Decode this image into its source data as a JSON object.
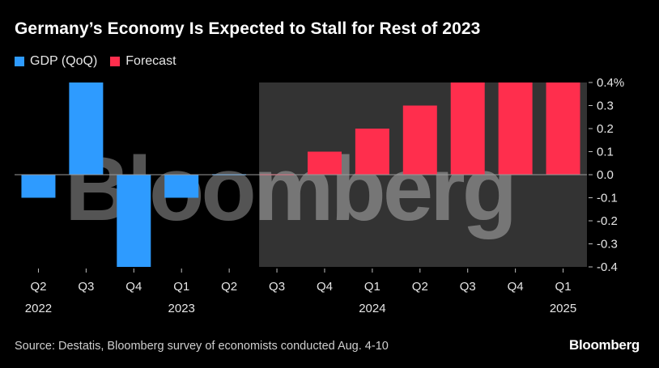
{
  "title": "Germany’s Economy Is Expected to Stall for Rest of 2023",
  "legend": [
    {
      "label": "GDP (QoQ)",
      "color": "#2e9bff"
    },
    {
      "label": "Forecast",
      "color": "#ff2e4d"
    }
  ],
  "source": "Source: Destatis, Bloomberg survey of economists conducted Aug. 4-10",
  "brand": "Bloomberg",
  "watermark": "Bloomberg",
  "chart_data": {
    "type": "bar",
    "categories": [
      "Q2 2022",
      "Q3 2022",
      "Q4 2022",
      "Q1 2023",
      "Q2 2023",
      "Q3 2023",
      "Q4 2023",
      "Q1 2024",
      "Q2 2024",
      "Q3 2024",
      "Q4 2024",
      "Q1 2025"
    ],
    "quarter_labels": [
      "Q2",
      "Q3",
      "Q4",
      "Q1",
      "Q2",
      "Q3",
      "Q4",
      "Q1",
      "Q2",
      "Q3",
      "Q4",
      "Q1"
    ],
    "year_labels": [
      "2022",
      "",
      "",
      "2023",
      "",
      "",
      "",
      "2024",
      "",
      "",
      "",
      "2025"
    ],
    "series": [
      {
        "name": "GDP (QoQ)",
        "color": "#2e9bff",
        "values": [
          -0.1,
          0.4,
          -0.4,
          -0.1,
          0.0,
          null,
          null,
          null,
          null,
          null,
          null,
          null
        ]
      },
      {
        "name": "Forecast",
        "color": "#ff2e4d",
        "values": [
          null,
          null,
          null,
          null,
          null,
          0.0,
          0.1,
          0.2,
          0.3,
          0.4,
          0.4,
          0.4
        ]
      }
    ],
    "ylim": [
      -0.4,
      0.4
    ],
    "yticks": [
      0.4,
      0.3,
      0.2,
      0.1,
      0.0,
      -0.1,
      -0.2,
      -0.3,
      -0.4
    ],
    "ytick_labels": [
      "0.4%",
      "0.3",
      "0.2",
      "0.1",
      "0.0",
      "-0.1",
      "-0.2",
      "-0.3",
      "-0.4"
    ],
    "forecast_shading_start": "Q3 2023",
    "shading_color": "#333333",
    "grid": false,
    "legend_position": "top-left"
  }
}
